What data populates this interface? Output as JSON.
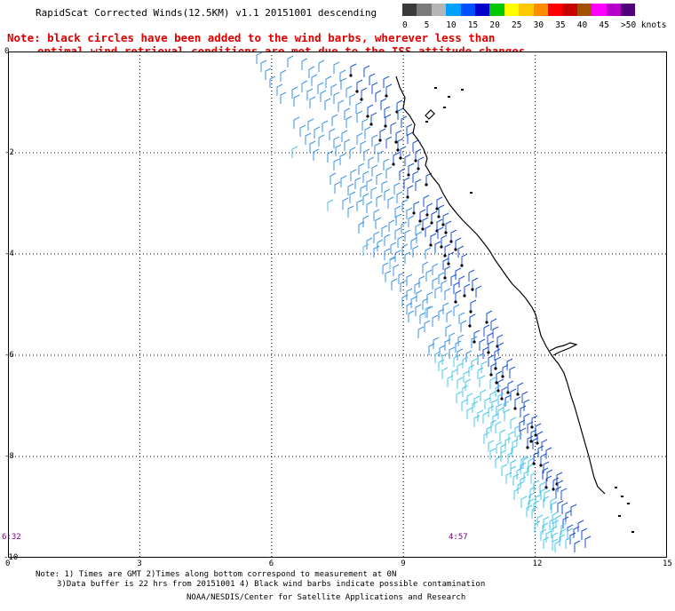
{
  "header": {
    "title": "RapidScat Corrected Winds(12.5KM) v1.1 20151001 descending",
    "note_line1": "Note: black circles have been added to the wind barbs, wherever less than",
    "note_line2": "optimal wind retrieval conditions are met due to the ISS attitude changes."
  },
  "legend": {
    "unit": "knots",
    "labels": [
      "0",
      "5",
      "10",
      "15",
      "20",
      "25",
      "30",
      "35",
      "40",
      "45",
      ">50 knots"
    ],
    "colors": [
      "#3a3a3a",
      "#7a7a7a",
      "#b4b4b4",
      "#00a0ff",
      "#0050ff",
      "#0000c8",
      "#00c800",
      "#ffff00",
      "#ffc800",
      "#ff8c00",
      "#ff0000",
      "#c80000",
      "#a05000",
      "#ff00ff",
      "#b400c8",
      "#500078"
    ]
  },
  "axes": {
    "y_ticks": [
      "0",
      "-2",
      "-4",
      "-6",
      "-8",
      "-10"
    ],
    "x_ticks": [
      "0",
      "3",
      "6",
      "9",
      "12",
      "15"
    ],
    "y_range": [
      0,
      -10
    ],
    "x_range": [
      0,
      15
    ],
    "grid": true
  },
  "time_labels": [
    "6:32",
    "4:57"
  ],
  "footnotes": {
    "line1": "Note: 1) Times are GMT 2)Times along bottom correspond to measurement at 0N",
    "line2": "3)Data buffer is 22 hrs from 20151001 4) Black wind barbs indicate possible contamination",
    "credit": "NOAA/NESDIS/Center for Satellite Applications and Research"
  }
}
